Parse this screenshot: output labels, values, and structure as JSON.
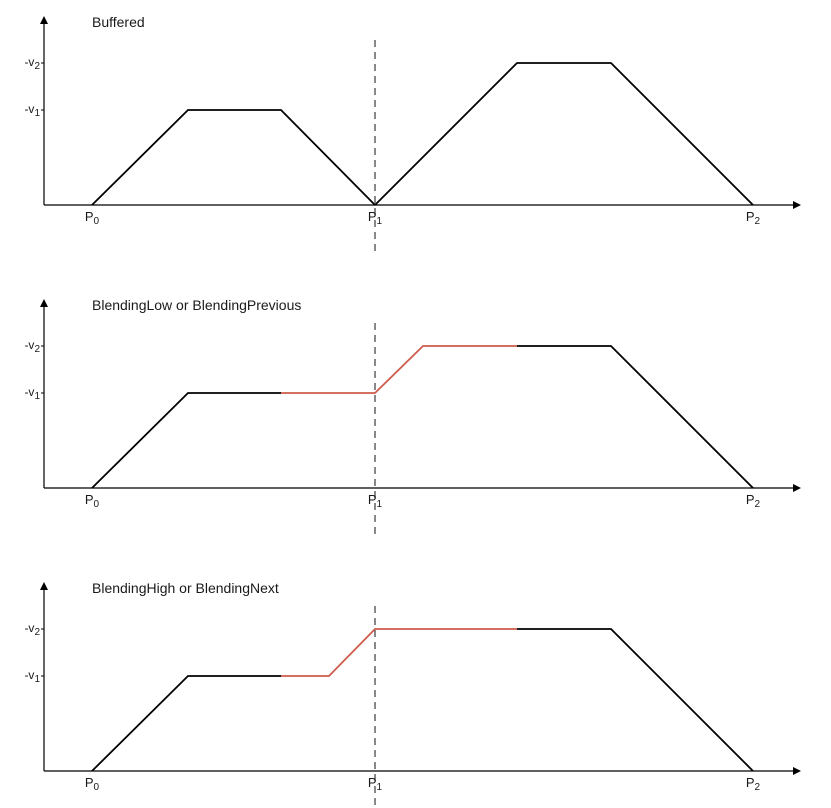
{
  "colors": {
    "axis": "#000000",
    "profile": "#000000",
    "blend": "#cd5c4c",
    "divider": "#555555"
  },
  "y_labels": [
    {
      "prefix": "-v",
      "sub": "2",
      "level": "v2"
    },
    {
      "prefix": "-v",
      "sub": "1",
      "level": "v1"
    }
  ],
  "x_labels": [
    {
      "prefix": "P",
      "sub": "0",
      "at": "P0"
    },
    {
      "prefix": "P",
      "sub": "1",
      "at": "P1"
    },
    {
      "prefix": "P",
      "sub": "2",
      "at": "P2"
    }
  ],
  "panels": [
    {
      "title": "Buffered",
      "segments": [
        {
          "kind": "profile",
          "points": [
            [
              "P0",
              0
            ],
            [
              "a1",
              "v1"
            ],
            [
              "b1",
              "v1"
            ],
            [
              "P1",
              0
            ]
          ]
        },
        {
          "kind": "profile",
          "points": [
            [
              "P1",
              0
            ],
            [
              "a2",
              "v2"
            ],
            [
              "b2",
              "v2"
            ],
            [
              "P2",
              0
            ]
          ]
        }
      ]
    },
    {
      "title": "BlendingLow or BlendingPrevious",
      "segments": [
        {
          "kind": "profile",
          "points": [
            [
              "P0",
              0
            ],
            [
              "a1",
              "v1"
            ],
            [
              "b1",
              "v1"
            ]
          ]
        },
        {
          "kind": "blend",
          "points": [
            [
              "b1",
              "v1"
            ],
            [
              "P1",
              "v1"
            ],
            [
              "r2",
              "v2"
            ],
            [
              "c2",
              "v2"
            ]
          ]
        },
        {
          "kind": "profile",
          "points": [
            [
              "c2",
              "v2"
            ],
            [
              "b2",
              "v2"
            ],
            [
              "P2",
              0
            ]
          ]
        }
      ]
    },
    {
      "title": "BlendingHigh or BlendingNext",
      "segments": [
        {
          "kind": "profile",
          "points": [
            [
              "P0",
              0
            ],
            [
              "a1",
              "v1"
            ],
            [
              "b1",
              "v1"
            ]
          ]
        },
        {
          "kind": "blend",
          "points": [
            [
              "b1",
              "v1"
            ],
            [
              "r1",
              "v1"
            ],
            [
              "P1",
              "v2"
            ],
            [
              "c2",
              "v2"
            ]
          ]
        },
        {
          "kind": "profile",
          "points": [
            [
              "c2",
              "v2"
            ],
            [
              "b2",
              "v2"
            ],
            [
              "P2",
              0
            ]
          ]
        }
      ]
    }
  ]
}
